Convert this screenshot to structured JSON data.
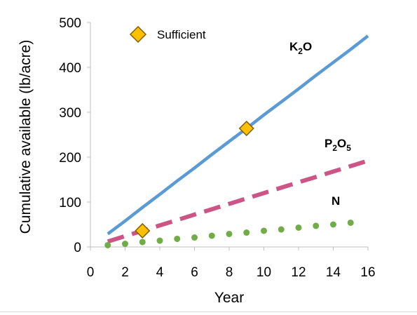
{
  "chart_data": {
    "type": "line",
    "title": "",
    "xlabel": "Year",
    "ylabel": "Cumulative available (lb/acre)",
    "xlim": [
      0,
      16
    ],
    "ylim": [
      0,
      500
    ],
    "xticks": [
      "0",
      "2",
      "4",
      "6",
      "8",
      "10",
      "12",
      "14",
      "16"
    ],
    "yticks": [
      "0",
      "100",
      "200",
      "300",
      "400",
      "500"
    ],
    "grid": false,
    "series": [
      {
        "name": "K2O",
        "label_main": "K",
        "label_sub": "2",
        "label_tail": "O",
        "style": "solid",
        "color": "#5b9bd5",
        "x": [
          1,
          2,
          3,
          4,
          5,
          6,
          7,
          8,
          9,
          10,
          11,
          12,
          13,
          14,
          15,
          16
        ],
        "y": [
          29,
          58,
          88,
          117,
          147,
          176,
          206,
          235,
          264,
          294,
          323,
          352,
          382,
          411,
          440,
          470
        ]
      },
      {
        "name": "P2O5",
        "label_main": "P",
        "label_sub": "2",
        "label_tail": "O",
        "label_sub2": "5",
        "style": "dashed",
        "color": "#cc5585",
        "x": [
          1,
          2,
          3,
          4,
          5,
          6,
          7,
          8,
          9,
          10,
          11,
          12,
          13,
          14,
          15,
          16
        ],
        "y": [
          12,
          24,
          36,
          48,
          60,
          72,
          84,
          96,
          108,
          120,
          132,
          144,
          156,
          168,
          180,
          192
        ]
      },
      {
        "name": "N",
        "label_main": "N",
        "style": "dotted",
        "color": "#70ad47",
        "x": [
          1,
          2,
          3,
          4,
          5,
          6,
          7,
          8,
          9,
          10,
          11,
          12,
          13,
          14,
          15
        ],
        "y": [
          4,
          7,
          11,
          14,
          18,
          21,
          25,
          29,
          32,
          36,
          39,
          43,
          47,
          50,
          54
        ]
      }
    ],
    "markers": [
      {
        "series": "K2O",
        "x": 9,
        "y": 264
      },
      {
        "series": "P2O5",
        "x": 3,
        "y": 36
      }
    ],
    "legend": {
      "label": "Sufficient",
      "marker_color": "#ffc000",
      "marker_stroke": "#7f6000",
      "position": "top-left"
    }
  }
}
